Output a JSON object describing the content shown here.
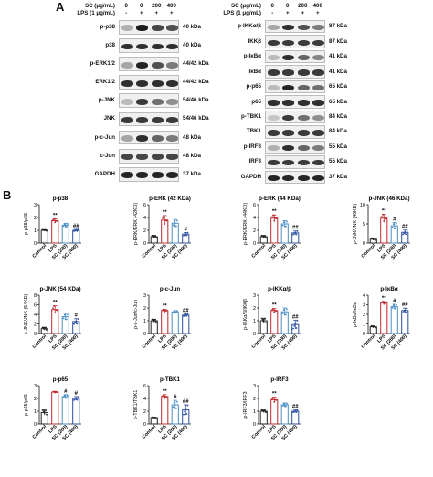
{
  "panel_a": {
    "letter": "A",
    "left": {
      "sc_label": "SC (μg/mL)",
      "lps_label": "LPS (1 μg/mL)",
      "sc_values": [
        "0",
        "0",
        "200",
        "400"
      ],
      "lps_values": [
        "-",
        "+",
        "+",
        "+"
      ],
      "rows": [
        {
          "name": "p-p38",
          "kda": "40 kDa",
          "intensity": [
            0.25,
            0.95,
            0.75,
            0.7
          ]
        },
        {
          "name": "p38",
          "kda": "40 kDa",
          "intensity": [
            0.85,
            0.85,
            0.85,
            0.85
          ]
        },
        {
          "name": "p-ERK1/2",
          "kda": "44/42 kDa",
          "intensity": [
            0.3,
            0.9,
            0.7,
            0.5
          ]
        },
        {
          "name": "ERK1/2",
          "kda": "44/42 kDa",
          "intensity": [
            0.85,
            0.85,
            0.85,
            0.85
          ]
        },
        {
          "name": "p-JNK",
          "kda": "54/46 kDa",
          "intensity": [
            0.2,
            0.8,
            0.55,
            0.4
          ]
        },
        {
          "name": "JNK",
          "kda": "54/46 kDa",
          "intensity": [
            0.8,
            0.8,
            0.8,
            0.8
          ]
        },
        {
          "name": "p-c-Jun",
          "kda": "48 kDa",
          "intensity": [
            0.3,
            0.85,
            0.6,
            0.5
          ]
        },
        {
          "name": "c-Jun",
          "kda": "48 kDa",
          "intensity": [
            0.75,
            0.75,
            0.75,
            0.75
          ]
        },
        {
          "name": "GAPDH",
          "kda": "37 kDa",
          "intensity": [
            0.9,
            0.9,
            0.9,
            0.9
          ]
        }
      ]
    },
    "right": {
      "sc_label": "SC (μg/mL)",
      "lps_label": "LPS (1 μg/mL)",
      "sc_values": [
        "0",
        "0",
        "200",
        "400"
      ],
      "lps_values": [
        "-",
        "+",
        "+",
        "+"
      ],
      "rows": [
        {
          "name": "p-IKKα/β",
          "kda": "87 kDa",
          "intensity": [
            0.3,
            0.85,
            0.7,
            0.5
          ]
        },
        {
          "name": "IKKβ",
          "kda": "87 kDa",
          "intensity": [
            0.8,
            0.8,
            0.8,
            0.8
          ]
        },
        {
          "name": "p-IκBα",
          "kda": "41 kDa",
          "intensity": [
            0.2,
            0.85,
            0.6,
            0.45
          ]
        },
        {
          "name": "IκBα",
          "kda": "41 kDa",
          "intensity": [
            0.8,
            0.8,
            0.8,
            0.8
          ]
        },
        {
          "name": "p-p65",
          "kda": "65 kDa",
          "intensity": [
            0.2,
            0.9,
            0.6,
            0.55
          ]
        },
        {
          "name": "p65",
          "kda": "65 kDa",
          "intensity": [
            0.85,
            0.85,
            0.85,
            0.85
          ]
        },
        {
          "name": "p-TBK1",
          "kda": "84 kDa",
          "intensity": [
            0.15,
            0.8,
            0.55,
            0.4
          ]
        },
        {
          "name": "TBK1",
          "kda": "84 kDa",
          "intensity": [
            0.8,
            0.8,
            0.8,
            0.8
          ]
        },
        {
          "name": "p-IRF3",
          "kda": "55 kDa",
          "intensity": [
            0.25,
            0.85,
            0.6,
            0.5
          ]
        },
        {
          "name": "IRF3",
          "kda": "55 kDa",
          "intensity": [
            0.8,
            0.8,
            0.8,
            0.8
          ]
        },
        {
          "name": "GAPDH",
          "kda": "37 kDa",
          "intensity": [
            0.9,
            0.9,
            0.9,
            0.9
          ]
        }
      ]
    }
  },
  "panel_b": {
    "letter": "B"
  },
  "colors": {
    "control": "#222222",
    "lps": "#c0282d",
    "sc200": "#4a8fc7",
    "sc400": "#2d4f9e"
  },
  "chart_data": [
    {
      "type": "bar",
      "title": "p-p38",
      "ylabel": "p-p38/p38",
      "ylim": [
        0,
        3
      ],
      "ticks": [
        0,
        1,
        2,
        3
      ],
      "categories": [
        "Control",
        "LPS",
        "SC (200)",
        "SC (400)"
      ],
      "values": [
        1.0,
        1.75,
        1.4,
        1.0
      ],
      "errors": [
        0.05,
        0.15,
        0.15,
        0.08
      ],
      "annotations": [
        "",
        "**",
        "",
        "##"
      ]
    },
    {
      "type": "bar",
      "title": "p-ERK (42 KDa)",
      "ylabel": "p-ERK/ERK (42KD)",
      "ylim": [
        0,
        6
      ],
      "ticks": [
        0,
        2,
        4,
        6
      ],
      "categories": [
        "Control",
        "LPS",
        "SC (200)",
        "SC (400)"
      ],
      "values": [
        1.0,
        3.6,
        3.1,
        1.4
      ],
      "errors": [
        0.2,
        0.7,
        0.6,
        0.25
      ],
      "annotations": [
        "",
        "**",
        "",
        "#"
      ]
    },
    {
      "type": "bar",
      "title": "p-ERK (44 KDa)",
      "ylabel": "p-ERK/ERK (44KD)",
      "ylim": [
        0,
        6
      ],
      "ticks": [
        0,
        2,
        4,
        6
      ],
      "categories": [
        "Control",
        "LPS",
        "SC (200)",
        "SC (400)"
      ],
      "values": [
        1.0,
        3.9,
        3.0,
        1.6
      ],
      "errors": [
        0.2,
        0.5,
        0.5,
        0.3
      ],
      "annotations": [
        "",
        "**",
        "",
        "##"
      ]
    },
    {
      "type": "bar",
      "title": "p-JNK (46 KDa)",
      "ylabel": "p-JNK/JNK (46KD)",
      "ylim": [
        0,
        10
      ],
      "ticks": [
        0,
        5,
        10
      ],
      "categories": [
        "Control",
        "LPS",
        "SC (200)",
        "SC (400)"
      ],
      "values": [
        1.0,
        6.5,
        4.5,
        2.8
      ],
      "errors": [
        0.3,
        1.0,
        0.9,
        0.6
      ],
      "annotations": [
        "",
        "**",
        "#",
        "##"
      ]
    },
    {
      "type": "bar",
      "title": "p-JNK (54 KDa)",
      "ylabel": "p-JNK/JNK (54KD)",
      "ylim": [
        0,
        8
      ],
      "ticks": [
        0,
        2,
        4,
        6,
        8
      ],
      "categories": [
        "Control",
        "LPS",
        "SC (200)",
        "SC (400)"
      ],
      "values": [
        1.0,
        5.0,
        3.5,
        2.5
      ],
      "errors": [
        0.3,
        0.8,
        0.7,
        0.6
      ],
      "annotations": [
        "",
        "**",
        "",
        "#"
      ]
    },
    {
      "type": "bar",
      "title": "p-c-Jun",
      "ylabel": "p-c-Jun/c-Jun",
      "ylim": [
        0,
        3
      ],
      "ticks": [
        0,
        1,
        2,
        3
      ],
      "categories": [
        "Control",
        "LPS",
        "SC (200)",
        "SC (400)"
      ],
      "values": [
        1.0,
        1.8,
        1.7,
        1.45
      ],
      "errors": [
        0.12,
        0.1,
        0.1,
        0.1
      ],
      "annotations": [
        "",
        "**",
        "",
        "##"
      ]
    },
    {
      "type": "bar",
      "title": "p-IKKα/β",
      "ylabel": "p-IKKα/β/IKKβ",
      "ylim": [
        0,
        3
      ],
      "ticks": [
        0,
        1,
        2,
        3
      ],
      "categories": [
        "Control",
        "LPS",
        "SC (200)",
        "SC (400)"
      ],
      "values": [
        1.0,
        1.8,
        1.7,
        0.7
      ],
      "errors": [
        0.2,
        0.15,
        0.3,
        0.35
      ],
      "annotations": [
        "",
        "**",
        "",
        "##"
      ]
    },
    {
      "type": "bar",
      "title": "p-IκBα",
      "ylabel": "p-IκBα/IκBα",
      "ylim": [
        0,
        4
      ],
      "ticks": [
        0,
        1,
        2,
        3,
        4
      ],
      "categories": [
        "Control",
        "LPS",
        "SC (200)",
        "SC (400)"
      ],
      "values": [
        0.7,
        3.2,
        2.8,
        2.4
      ],
      "errors": [
        0.1,
        0.15,
        0.25,
        0.25
      ],
      "annotations": [
        "",
        "**",
        "#",
        "##"
      ]
    },
    {
      "type": "bar",
      "title": "p-p65",
      "ylabel": "p-p65/p65",
      "ylim": [
        0,
        3
      ],
      "ticks": [
        0,
        1,
        2,
        3
      ],
      "categories": [
        "Control",
        "LPS",
        "SC (200)",
        "SC (400)"
      ],
      "values": [
        0.9,
        2.5,
        2.15,
        2.0
      ],
      "errors": [
        0.2,
        0.05,
        0.15,
        0.15
      ],
      "annotations": [
        "",
        "",
        "#",
        "#"
      ]
    },
    {
      "type": "bar",
      "title": "p-TBK1",
      "ylabel": "p-TBK1/TBK1",
      "ylim": [
        0,
        6
      ],
      "ticks": [
        0,
        2,
        4,
        6
      ],
      "categories": [
        "Control",
        "LPS",
        "SC (200)",
        "SC (400)"
      ],
      "values": [
        1.0,
        4.3,
        3.0,
        2.2
      ],
      "errors": [
        0.05,
        0.3,
        0.7,
        0.8
      ],
      "annotations": [
        "",
        "**",
        "#",
        "##"
      ]
    },
    {
      "type": "bar",
      "title": "p-IRF3",
      "ylabel": "p-IRF3/IRF3",
      "ylim": [
        0,
        3
      ],
      "ticks": [
        0,
        1,
        2,
        3
      ],
      "categories": [
        "Control",
        "LPS",
        "SC (200)",
        "SC (400)"
      ],
      "values": [
        1.0,
        1.9,
        1.5,
        1.0
      ],
      "errors": [
        0.1,
        0.2,
        0.15,
        0.1
      ],
      "annotations": [
        "",
        "**",
        "",
        "##"
      ]
    }
  ]
}
